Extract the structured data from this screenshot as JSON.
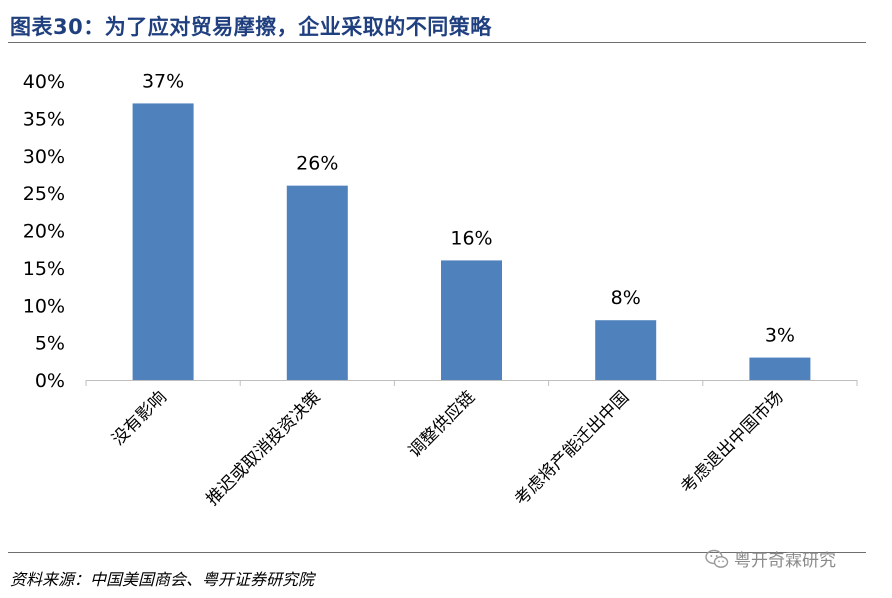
{
  "title": "图表30：为了应对贸易摩擦，企业采取的不同策略",
  "source": "资料来源：中国美国商会、粤开证券研究院",
  "watermark": {
    "text": "粤开奇霖研究",
    "icon": "wechat-icon"
  },
  "colors": {
    "bar": "#4f81bd",
    "title": "#1f3f7f",
    "axis": "#bfbfbf"
  },
  "chart_data": {
    "type": "bar",
    "title": "",
    "xlabel": "",
    "ylabel": "",
    "ylim": [
      0,
      40
    ],
    "yticks": [
      "0%",
      "5%",
      "10%",
      "15%",
      "20%",
      "25%",
      "30%",
      "35%",
      "40%"
    ],
    "categories": [
      "没有影响",
      "推迟或取消投资决策",
      "调整供应链",
      "考虑将产能迁出中国",
      "考虑退出中国市场"
    ],
    "values": [
      37,
      26,
      16,
      8,
      3
    ],
    "value_labels": [
      "37%",
      "26%",
      "16%",
      "8%",
      "3%"
    ],
    "grid": false,
    "legend": "none"
  }
}
